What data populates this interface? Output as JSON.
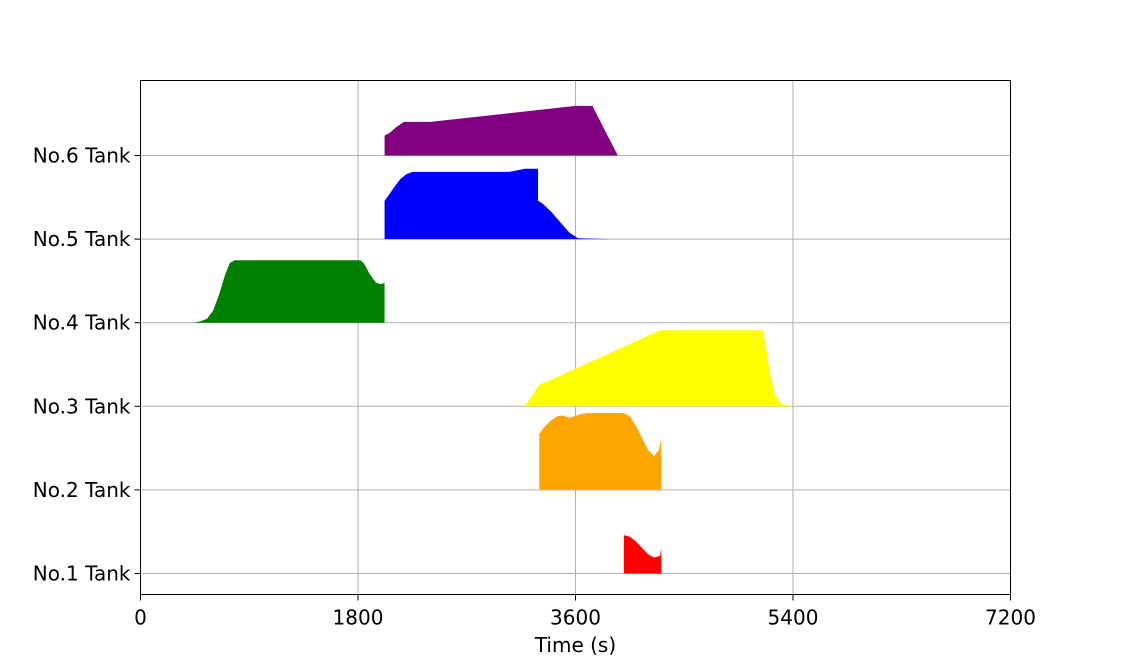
{
  "chart_data": {
    "type": "area",
    "xlabel": "Time (s)",
    "ylabel": "",
    "title": "",
    "xlim": [
      0,
      7200
    ],
    "xticks": [
      0,
      1800,
      3600,
      5400,
      7200
    ],
    "grid": true,
    "categories": [
      "No.1 Tank",
      "No.2 Tank",
      "No.3 Tank",
      "No.4 Tank",
      "No.5 Tank",
      "No.6 Tank"
    ],
    "series": [
      {
        "category": "No.1 Tank",
        "color": "#ff0000",
        "points": [
          [
            4000,
            0
          ],
          [
            4000,
            0.48
          ],
          [
            4050,
            0.46
          ],
          [
            4100,
            0.4
          ],
          [
            4150,
            0.32
          ],
          [
            4200,
            0.24
          ],
          [
            4250,
            0.2
          ],
          [
            4300,
            0.22
          ],
          [
            4310,
            0.32
          ],
          [
            4310,
            0
          ]
        ]
      },
      {
        "category": "No.2 Tank",
        "color": "#ffa500",
        "points": [
          [
            3300,
            0
          ],
          [
            3300,
            0.7
          ],
          [
            3350,
            0.8
          ],
          [
            3400,
            0.87
          ],
          [
            3450,
            0.92
          ],
          [
            3500,
            0.93
          ],
          [
            3550,
            0.9
          ],
          [
            3650,
            0.95
          ],
          [
            3700,
            0.96
          ],
          [
            4000,
            0.96
          ],
          [
            4050,
            0.92
          ],
          [
            4100,
            0.8
          ],
          [
            4150,
            0.65
          ],
          [
            4200,
            0.5
          ],
          [
            4250,
            0.42
          ],
          [
            4290,
            0.5
          ],
          [
            4310,
            0.64
          ],
          [
            4310,
            0
          ]
        ]
      },
      {
        "category": "No.3 Tank",
        "color": "#ffff00",
        "points": [
          [
            3180,
            0
          ],
          [
            3250,
            0.15
          ],
          [
            3300,
            0.27
          ],
          [
            3350,
            0.3
          ],
          [
            4300,
            0.95
          ],
          [
            5150,
            0.95
          ],
          [
            5180,
            0.7
          ],
          [
            5210,
            0.4
          ],
          [
            5250,
            0.15
          ],
          [
            5300,
            0.03
          ],
          [
            5400,
            0
          ]
        ]
      },
      {
        "category": "No.4 Tank",
        "color": "#008000",
        "points": [
          [
            440,
            0
          ],
          [
            500,
            0.02
          ],
          [
            550,
            0.05
          ],
          [
            600,
            0.15
          ],
          [
            650,
            0.35
          ],
          [
            700,
            0.6
          ],
          [
            740,
            0.75
          ],
          [
            780,
            0.78
          ],
          [
            1820,
            0.78
          ],
          [
            1850,
            0.74
          ],
          [
            1900,
            0.6
          ],
          [
            1950,
            0.5
          ],
          [
            1990,
            0.48
          ],
          [
            2020,
            0.5
          ],
          [
            2020,
            0
          ]
        ]
      },
      {
        "category": "No.5 Tank",
        "color": "#0000ff",
        "points": [
          [
            2020,
            0
          ],
          [
            2020,
            0.48
          ],
          [
            2050,
            0.54
          ],
          [
            2100,
            0.65
          ],
          [
            2150,
            0.75
          ],
          [
            2200,
            0.81
          ],
          [
            2250,
            0.84
          ],
          [
            3050,
            0.84
          ],
          [
            3120,
            0.86
          ],
          [
            3180,
            0.88
          ],
          [
            3290,
            0.88
          ],
          [
            3290,
            0.48
          ],
          [
            3330,
            0.44
          ],
          [
            3400,
            0.34
          ],
          [
            3480,
            0.2
          ],
          [
            3550,
            0.08
          ],
          [
            3620,
            0.01
          ],
          [
            3900,
            0
          ]
        ]
      },
      {
        "category": "No.6 Tank",
        "color": "#800080",
        "points": [
          [
            2020,
            0
          ],
          [
            2020,
            0.25
          ],
          [
            2060,
            0.28
          ],
          [
            2120,
            0.36
          ],
          [
            2180,
            0.42
          ],
          [
            2400,
            0.42
          ],
          [
            3600,
            0.62
          ],
          [
            3740,
            0.62
          ],
          [
            3950,
            0
          ],
          [
            3950,
            0
          ]
        ]
      }
    ]
  }
}
